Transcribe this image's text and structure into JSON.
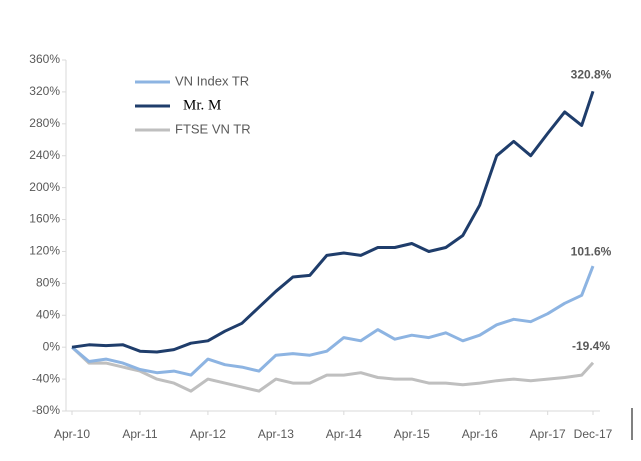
{
  "chart_data": {
    "type": "line",
    "x": [
      "2010-04",
      "2010-07",
      "2010-10",
      "2011-01",
      "2011-04",
      "2011-07",
      "2011-10",
      "2012-01",
      "2012-04",
      "2012-07",
      "2012-10",
      "2013-01",
      "2013-04",
      "2013-07",
      "2013-10",
      "2014-01",
      "2014-04",
      "2014-07",
      "2014-10",
      "2015-01",
      "2015-04",
      "2015-07",
      "2015-10",
      "2016-01",
      "2016-04",
      "2016-07",
      "2016-10",
      "2017-01",
      "2017-04",
      "2017-07",
      "2017-10",
      "2017-12"
    ],
    "series": [
      {
        "name": "VN Index TR",
        "color": "#8db4e2",
        "end_label": "101.6%",
        "values": [
          0,
          -18,
          -15,
          -20,
          -28,
          -32,
          -30,
          -35,
          -15,
          -22,
          -25,
          -30,
          -10,
          -8,
          -10,
          -5,
          12,
          8,
          22,
          10,
          15,
          12,
          18,
          8,
          15,
          28,
          35,
          32,
          42,
          55,
          65,
          101.6
        ]
      },
      {
        "name": "Mr. M",
        "color": "#1f3d6b",
        "end_label": "320.8%",
        "values": [
          0,
          3,
          2,
          3,
          -5,
          -6,
          -3,
          5,
          8,
          20,
          30,
          50,
          70,
          88,
          90,
          115,
          118,
          115,
          125,
          125,
          130,
          120,
          125,
          140,
          178,
          240,
          258,
          240,
          268,
          295,
          278,
          320.8
        ]
      },
      {
        "name": "FTSE VN TR",
        "color": "#bfbfbf",
        "end_label": "-19.4%",
        "values": [
          0,
          -20,
          -20,
          -25,
          -30,
          -40,
          -45,
          -55,
          -40,
          -45,
          -50,
          -55,
          -40,
          -45,
          -45,
          -35,
          -35,
          -32,
          -38,
          -40,
          -40,
          -45,
          -45,
          -47,
          -45,
          -42,
          -40,
          -42,
          -40,
          -38,
          -35,
          -19.4
        ]
      }
    ],
    "xlim": [
      "2010-04",
      "2017-12"
    ],
    "xticks": [
      {
        "value": "2010-04",
        "label": "Apr-10"
      },
      {
        "value": "2011-04",
        "label": "Apr-11"
      },
      {
        "value": "2012-04",
        "label": "Apr-12"
      },
      {
        "value": "2013-04",
        "label": "Apr-13"
      },
      {
        "value": "2014-04",
        "label": "Apr-14"
      },
      {
        "value": "2015-04",
        "label": "Apr-15"
      },
      {
        "value": "2016-04",
        "label": "Apr-16"
      },
      {
        "value": "2017-04",
        "label": "Apr-17"
      },
      {
        "value": "2017-12",
        "label": "Dec-17"
      }
    ],
    "ylim": [
      -80,
      360
    ],
    "yticks": [
      {
        "value": -80,
        "label": "-80%"
      },
      {
        "value": -40,
        "label": "-40%"
      },
      {
        "value": 0,
        "label": "0%"
      },
      {
        "value": 40,
        "label": "40%"
      },
      {
        "value": 80,
        "label": "80%"
      },
      {
        "value": 120,
        "label": "120%"
      },
      {
        "value": 160,
        "label": "160%"
      },
      {
        "value": 200,
        "label": "200%"
      },
      {
        "value": 240,
        "label": "240%"
      },
      {
        "value": 280,
        "label": "280%"
      },
      {
        "value": 320,
        "label": "320%"
      },
      {
        "value": 360,
        "label": "360%"
      }
    ],
    "grid": false
  }
}
